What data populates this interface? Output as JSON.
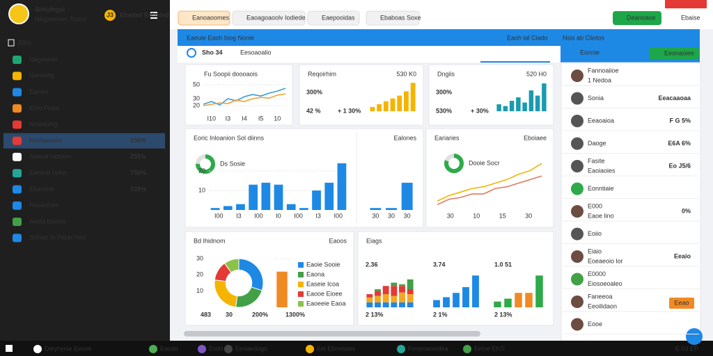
{
  "sidebar": {
    "title": "Simulngai",
    "subtitle": "Nsgpooriws Tosics",
    "badge": "J3",
    "badge_text": "Ehaded Ehhaind",
    "section": "Eibis",
    "items": [
      {
        "label": "Nagosaiel",
        "color": "#1ea672"
      },
      {
        "label": "Nanoolig",
        "color": "#f5b400"
      },
      {
        "label": "Eanies",
        "color": "#1e88e5"
      },
      {
        "label": "Eom Fnies",
        "color": "#f08a24"
      },
      {
        "label": "Noiaaobig",
        "color": "#e53935"
      },
      {
        "label": "Nesfaloiaos",
        "value": "236%",
        "color": "#e53935",
        "selected": true
      },
      {
        "label": "Aseoal cidsiom",
        "value": "255%",
        "color": "#ffffff"
      },
      {
        "label": "Eahinaf cofier",
        "value": "730%",
        "color": "#26a69a"
      },
      {
        "label": "Ebanonh",
        "value": "339%",
        "color": "#1e88e5"
      },
      {
        "label": "Reiaeshes",
        "color": "#1e88e5"
      },
      {
        "label": "Aeoia bisocis",
        "color": "#43a047"
      },
      {
        "label": "Sohiac Ia Facer hiioi",
        "color": "#1e88e5"
      }
    ]
  },
  "topbar": {
    "tabs": [
      "Eanoaoomes",
      "Eaoagoaoolv Iodiede",
      "Eaepooidas",
      "Ebaboas Soxe"
    ],
    "button": "Deanoaoe",
    "link": "Ebaise"
  },
  "banner": {
    "title": "Eaeuie Eaoh biog Nonie",
    "tag1": "Eaoh lal Ciado",
    "tag2": "Nsis ab Cliotos",
    "tab": "Sho 34",
    "subtab": "Eesoaoalio",
    "right": "Eonnie",
    "button": "Eeonaoiee"
  },
  "cards": [
    {
      "title": "Fu Soopii doooaois",
      "title_color": "#222",
      "charts": [
        {
          "type": "line",
          "ylim": [
            10,
            60
          ],
          "yticks": [
            20,
            30,
            50
          ],
          "xlabels": [
            "I10",
            "I3",
            "I4",
            "I5",
            "10"
          ],
          "series": [
            {
              "color": "#3a9ad9",
              "values": [
                22,
                26,
                21,
                30,
                27,
                33,
                36,
                34,
                38,
                41,
                45
              ]
            },
            {
              "color": "#f0a030",
              "values": [
                20,
                22,
                24,
                23,
                28,
                26,
                30,
                32,
                31,
                35,
                37
              ]
            }
          ]
        }
      ]
    },
    {
      "title": "Reqoirhim",
      "title_color": "#2e9e44",
      "tag": "530 K0",
      "stats": [
        {
          "text": "300%",
          "color": "#333"
        },
        {
          "text": "42 %",
          "color": "#e53935"
        },
        {
          "text": "+ 1 30%",
          "color": "#2e9e44"
        }
      ],
      "charts": [
        {
          "type": "bar",
          "color": "#f5b400",
          "ylim": [
            0,
            22
          ],
          "values": [
            3,
            5,
            7,
            9,
            11,
            14,
            20
          ]
        }
      ]
    },
    {
      "title": "Dngiis",
      "title_color": "#1a8a7a",
      "tag": "520 H0",
      "stats": [
        {
          "text": "300%",
          "color": "#333"
        },
        {
          "text": "530%",
          "color": "#e53935"
        },
        {
          "text": "+ 30%",
          "color": "#2e9e44"
        }
      ],
      "charts": [
        {
          "type": "bar",
          "color": "#1a9bb0",
          "ylim": [
            0,
            18
          ],
          "values": [
            4,
            3,
            6,
            8,
            5,
            12,
            9,
            16
          ]
        }
      ]
    },
    {
      "title": "Eoric Inloanion Sol diinns",
      "title_color": "#222",
      "tag": "Ealones",
      "charts": [
        {
          "type": "donut",
          "value": 75,
          "color": "#2eaa4a",
          "label": "Ds Sosie"
        },
        {
          "type": "bar",
          "color": "#1e88e5",
          "ylim": [
            0,
            25
          ],
          "yticks": [
            10,
            20
          ],
          "values": [
            1,
            2,
            3,
            13,
            14,
            13,
            3,
            1,
            10,
            14,
            24
          ],
          "xlabels": [
            "I00",
            "I3",
            "I00",
            "I0",
            "I00",
            "I3",
            "I00"
          ]
        },
        {
          "type": "bar",
          "color": "#1e88e5",
          "ylim": [
            0,
            25
          ],
          "values": [
            1,
            1,
            14
          ],
          "xlabels": [
            "30",
            "30",
            "30"
          ]
        }
      ]
    },
    {
      "title": "Eariaries",
      "title_color": "#222",
      "tag": "Eboiaee",
      "charts": [
        {
          "type": "donut",
          "value": 80,
          "color": "#2eaa4a",
          "label": "Dooie Socr"
        },
        {
          "type": "line",
          "ylim": [
            0,
            28
          ],
          "xlabels": [
            "30",
            "10",
            "15",
            "30"
          ],
          "series": [
            {
              "color": "#f5b400",
              "values": [
                5,
                8,
                10,
                12,
                13,
                15,
                17,
                20,
                22,
                26
              ]
            },
            {
              "color": "#e07a5f",
              "values": [
                3,
                6,
                7,
                9,
                9,
                12,
                13,
                15,
                17,
                19
              ]
            }
          ]
        }
      ]
    },
    {
      "title": "Bd Ihidnom",
      "title_color": "#222",
      "tag": "Eaoos",
      "stats": [
        {
          "text": "483",
          "color": "#333"
        },
        {
          "text": "30",
          "color": "#333"
        },
        {
          "text": "200%",
          "color": "#333"
        },
        {
          "text": "1300%",
          "color": "#333"
        }
      ],
      "charts": [
        {
          "type": "pie",
          "values": [
            30,
            22,
            25,
            13,
            10
          ],
          "colors": [
            "#1e88e5",
            "#43a047",
            "#f5b400",
            "#e53935",
            "#8bc34a"
          ],
          "labels": [
            "Eaoie Sooie",
            "Eaona",
            "Easeie Icoa",
            "Eaooe Eioee",
            "Eaoeeie Eaoa"
          ]
        },
        {
          "type": "bar",
          "color": "#f08a24",
          "ylim": [
            0,
            30
          ],
          "yticks": [
            10,
            20,
            30
          ],
          "values": [
            22
          ]
        }
      ]
    },
    {
      "title": "Eiags",
      "title_color": "#222",
      "stats": [
        {
          "text": "2.36",
          "color": "#2e9e44"
        },
        {
          "text": "3.74",
          "color": "#2e9e44"
        },
        {
          "text": "1.0 51",
          "color": "#2e9e44"
        },
        {
          "text": "2 13%",
          "color": "#2e9e44"
        },
        {
          "text": "2 1%",
          "color": "#2e9e44"
        },
        {
          "text": "2 13%",
          "color": "#2e9e44"
        }
      ],
      "charts": [
        {
          "type": "stacked",
          "ylim": [
            0,
            22
          ],
          "series": [
            {
              "color": "#1e88e5",
              "values": [
                3,
                3,
                3,
                3,
                3,
                3
              ]
            },
            {
              "color": "#f5a623",
              "values": [
                3,
                4,
                5,
                4,
                6,
                5
              ]
            },
            {
              "color": "#e53935",
              "values": [
                2,
                3,
                5,
                6,
                4,
                3
              ]
            },
            {
              "color": "#43a047",
              "values": [
                0,
                1,
                0,
                2,
                1,
                6
              ]
            }
          ]
        },
        {
          "type": "bar",
          "color": "#1e88e5",
          "ylim": [
            0,
            25
          ],
          "values": [
            5,
            7,
            10,
            14,
            22
          ]
        },
        {
          "type": "bar",
          "colors": [
            "#2eaa4a",
            "#2eaa4a",
            "#f08a24",
            "#f08a24",
            "#2eaa4a"
          ],
          "ylim": [
            0,
            25
          ],
          "values": [
            4,
            6,
            10,
            10,
            22
          ]
        }
      ]
    }
  ],
  "right_panel": {
    "items": [
      {
        "title": "Fannoaiioe",
        "sub": "1 Nedoa",
        "icon_color": "#6d4c41"
      },
      {
        "title": "Sonia",
        "value": "Eeacaaoaa",
        "value_color": "#f08a24",
        "icon_color": "#555"
      },
      {
        "title": "Eeaoaioa",
        "value": "F G 5%",
        "value_color": "#f08a24",
        "icon_color": "#555"
      },
      {
        "title": "Daoge",
        "value": "E6A 6%",
        "value_color": "#2e9e44",
        "icon_color": "#555"
      },
      {
        "title": "Fasite",
        "sub": "Eaoiaoies",
        "value": "Eo J5/6",
        "value_color": "#2e9e44",
        "icon_color": "#555"
      },
      {
        "title": "Eonntiaie",
        "icon_color": "#2eaa4a"
      },
      {
        "title": "E000",
        "sub": "Eaoe lino",
        "value": "0%",
        "value_color": "#2e9e44",
        "icon_color": "#6d4c41"
      },
      {
        "title": "Eoiio",
        "icon_color": "#555"
      },
      {
        "title": "Eiaio",
        "sub": "Eoeaeoio lor",
        "value": "Eeaio",
        "value_color": "#555",
        "icon_color": "#6d4c41"
      },
      {
        "title": "E0000",
        "sub": "Eiosoeoaleo",
        "icon_color": "#43a047"
      },
      {
        "title": "Faneeoa",
        "sub": "Eeoilidaon",
        "value": "Eeao",
        "value_color": "#f08a24",
        "icon_color": "#6d4c41",
        "button": true
      },
      {
        "title": "Eooe",
        "icon_color": "#6d4c41"
      }
    ]
  },
  "taskbar": {
    "items": [
      "Dieyhynie Eesoe",
      "Eaodo",
      "Esdo",
      "Eeoaedogo",
      "Eei Ebnetaies",
      "Fenooaoiodea",
      "Eeioe Eh7i"
    ],
    "time": "E:03 EP"
  }
}
